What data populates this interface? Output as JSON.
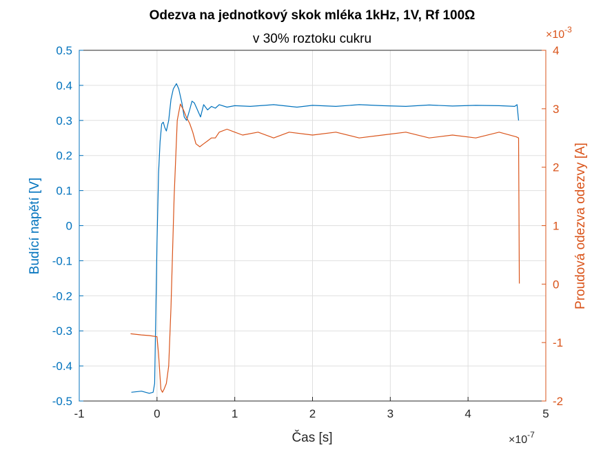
{
  "chart_data": {
    "type": "line",
    "title": "Odezva na jednotkový skok mléka 1kHz, 1V, Rf 100Ω",
    "subtitle": "v 30% roztoku cukru",
    "xlabel": "Čas [s]",
    "ylabel_left": "Budící napětí [V]",
    "ylabel_right": "Proudová odezva odezvy [A]",
    "x_exponent": "-7",
    "right_exponent": "-3",
    "xlim": [
      -1e-07,
      5e-07
    ],
    "ylim_left": [
      -0.5,
      0.5
    ],
    "ylim_right": [
      -0.002,
      0.004
    ],
    "grid": true,
    "x_ticks": [
      -1e-07,
      0,
      1e-07,
      2e-07,
      3e-07,
      4e-07,
      5e-07
    ],
    "x_tick_labels": [
      "-1",
      "0",
      "1",
      "2",
      "3",
      "4",
      "5"
    ],
    "left_ticks": [
      0.5,
      0.4,
      0.3,
      0.2,
      0.1,
      0,
      -0.1,
      -0.2,
      -0.3,
      -0.4,
      -0.5
    ],
    "left_tick_labels": [
      "0.5",
      "0.4",
      "0.3",
      "0.2",
      "0.1",
      "0",
      "-0.1",
      "-0.2",
      "-0.3",
      "-0.4",
      "-0.5"
    ],
    "right_ticks": [
      0.004,
      0.003,
      0.002,
      0.001,
      0,
      -0.001,
      -0.002
    ],
    "right_tick_labels": [
      "4",
      "3",
      "2",
      "1",
      "0",
      "-1",
      "-2"
    ],
    "colors": {
      "left": "#0072BD",
      "right": "#D95319",
      "grid": "#DFDFDF",
      "axis": "#262626"
    },
    "series": [
      {
        "axis": "left",
        "color": "#0072BD",
        "x": [
          -3.3e-08,
          -2e-08,
          -1e-08,
          -5e-09,
          -3e-09,
          0,
          2e-09,
          4e-09,
          6e-09,
          8e-09,
          1e-08,
          1.2e-08,
          1.5e-08,
          1.8e-08,
          2.1e-08,
          2.5e-08,
          2.8e-08,
          3.2e-08,
          3.5e-08,
          3.8e-08,
          4.2e-08,
          4.5e-08,
          4.8e-08,
          5.2e-08,
          5.6e-08,
          6e-08,
          6.5e-08,
          7e-08,
          7.5e-08,
          8e-08,
          9e-08,
          1e-07,
          1.2e-07,
          1.5e-07,
          1.8e-07,
          2e-07,
          2.3e-07,
          2.6e-07,
          2.9e-07,
          3.2e-07,
          3.5e-07,
          3.8e-07,
          4.1e-07,
          4.4e-07,
          4.6e-07,
          4.63e-07,
          4.65e-07
        ],
        "y": [
          -0.475,
          -0.472,
          -0.478,
          -0.475,
          -0.45,
          -0.05,
          0.15,
          0.24,
          0.29,
          0.295,
          0.28,
          0.27,
          0.3,
          0.36,
          0.39,
          0.405,
          0.39,
          0.35,
          0.31,
          0.3,
          0.33,
          0.355,
          0.35,
          0.33,
          0.31,
          0.345,
          0.33,
          0.34,
          0.335,
          0.345,
          0.338,
          0.342,
          0.34,
          0.345,
          0.338,
          0.343,
          0.34,
          0.345,
          0.342,
          0.34,
          0.344,
          0.341,
          0.343,
          0.342,
          0.34,
          0.345,
          0.3
        ]
      },
      {
        "axis": "right",
        "color": "#D95319",
        "x": [
          -3.4e-08,
          -2e-08,
          -1e-08,
          0,
          2e-09,
          4e-09,
          5e-09,
          7e-09,
          9e-09,
          1.2e-08,
          1.5e-08,
          1.8e-08,
          2.2e-08,
          2.6e-08,
          3e-08,
          3.4e-08,
          3.8e-08,
          4.2e-08,
          4.6e-08,
          5e-08,
          5.5e-08,
          6e-08,
          6.5e-08,
          7e-08,
          7.5e-08,
          8e-08,
          9e-08,
          1e-07,
          1.1e-07,
          1.3e-07,
          1.5e-07,
          1.7e-07,
          2e-07,
          2.3e-07,
          2.6e-07,
          2.9e-07,
          3.2e-07,
          3.5e-07,
          3.8e-07,
          4.1e-07,
          4.4e-07,
          4.62e-07,
          4.65e-07,
          4.66e-07
        ],
        "y": [
          -0.00085,
          -0.00087,
          -0.00088,
          -0.0009,
          -0.0012,
          -0.0016,
          -0.0018,
          -0.00185,
          -0.0018,
          -0.0017,
          -0.0014,
          -0.0004,
          0.0015,
          0.0028,
          0.00308,
          0.00298,
          0.00285,
          0.00275,
          0.0026,
          0.0024,
          0.00235,
          0.0024,
          0.00245,
          0.0025,
          0.0025,
          0.0026,
          0.00265,
          0.0026,
          0.00255,
          0.0026,
          0.0025,
          0.0026,
          0.00255,
          0.0026,
          0.0025,
          0.00255,
          0.0026,
          0.0025,
          0.00255,
          0.0025,
          0.0026,
          0.00252,
          0.0025,
          1e-05
        ]
      }
    ]
  }
}
